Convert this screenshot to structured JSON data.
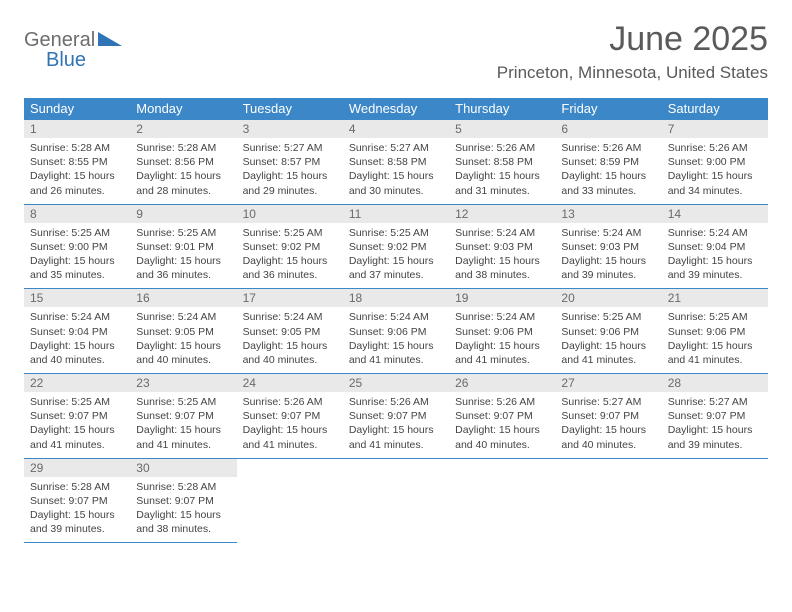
{
  "brand": {
    "word1": "General",
    "word2": "Blue",
    "word1_color": "#6d6d6d",
    "word2_color": "#2f74b5",
    "triangle_color": "#2f74b5"
  },
  "header": {
    "title": "June 2025",
    "location": "Princeton, Minnesota, United States"
  },
  "theme": {
    "header_bg": "#3c87c7",
    "header_fg": "#ffffff",
    "daynum_bg": "#e9e9e9",
    "daynum_fg": "#6a6a6a",
    "rule_color": "#3c87c7",
    "text_color": "#444444"
  },
  "daysOfWeek": [
    "Sunday",
    "Monday",
    "Tuesday",
    "Wednesday",
    "Thursday",
    "Friday",
    "Saturday"
  ],
  "weeks": [
    [
      {
        "n": "1",
        "sunrise": "5:28 AM",
        "sunset": "8:55 PM",
        "dl": "15 hours and 26 minutes."
      },
      {
        "n": "2",
        "sunrise": "5:28 AM",
        "sunset": "8:56 PM",
        "dl": "15 hours and 28 minutes."
      },
      {
        "n": "3",
        "sunrise": "5:27 AM",
        "sunset": "8:57 PM",
        "dl": "15 hours and 29 minutes."
      },
      {
        "n": "4",
        "sunrise": "5:27 AM",
        "sunset": "8:58 PM",
        "dl": "15 hours and 30 minutes."
      },
      {
        "n": "5",
        "sunrise": "5:26 AM",
        "sunset": "8:58 PM",
        "dl": "15 hours and 31 minutes."
      },
      {
        "n": "6",
        "sunrise": "5:26 AM",
        "sunset": "8:59 PM",
        "dl": "15 hours and 33 minutes."
      },
      {
        "n": "7",
        "sunrise": "5:26 AM",
        "sunset": "9:00 PM",
        "dl": "15 hours and 34 minutes."
      }
    ],
    [
      {
        "n": "8",
        "sunrise": "5:25 AM",
        "sunset": "9:00 PM",
        "dl": "15 hours and 35 minutes."
      },
      {
        "n": "9",
        "sunrise": "5:25 AM",
        "sunset": "9:01 PM",
        "dl": "15 hours and 36 minutes."
      },
      {
        "n": "10",
        "sunrise": "5:25 AM",
        "sunset": "9:02 PM",
        "dl": "15 hours and 36 minutes."
      },
      {
        "n": "11",
        "sunrise": "5:25 AM",
        "sunset": "9:02 PM",
        "dl": "15 hours and 37 minutes."
      },
      {
        "n": "12",
        "sunrise": "5:24 AM",
        "sunset": "9:03 PM",
        "dl": "15 hours and 38 minutes."
      },
      {
        "n": "13",
        "sunrise": "5:24 AM",
        "sunset": "9:03 PM",
        "dl": "15 hours and 39 minutes."
      },
      {
        "n": "14",
        "sunrise": "5:24 AM",
        "sunset": "9:04 PM",
        "dl": "15 hours and 39 minutes."
      }
    ],
    [
      {
        "n": "15",
        "sunrise": "5:24 AM",
        "sunset": "9:04 PM",
        "dl": "15 hours and 40 minutes."
      },
      {
        "n": "16",
        "sunrise": "5:24 AM",
        "sunset": "9:05 PM",
        "dl": "15 hours and 40 minutes."
      },
      {
        "n": "17",
        "sunrise": "5:24 AM",
        "sunset": "9:05 PM",
        "dl": "15 hours and 40 minutes."
      },
      {
        "n": "18",
        "sunrise": "5:24 AM",
        "sunset": "9:06 PM",
        "dl": "15 hours and 41 minutes."
      },
      {
        "n": "19",
        "sunrise": "5:24 AM",
        "sunset": "9:06 PM",
        "dl": "15 hours and 41 minutes."
      },
      {
        "n": "20",
        "sunrise": "5:25 AM",
        "sunset": "9:06 PM",
        "dl": "15 hours and 41 minutes."
      },
      {
        "n": "21",
        "sunrise": "5:25 AM",
        "sunset": "9:06 PM",
        "dl": "15 hours and 41 minutes."
      }
    ],
    [
      {
        "n": "22",
        "sunrise": "5:25 AM",
        "sunset": "9:07 PM",
        "dl": "15 hours and 41 minutes."
      },
      {
        "n": "23",
        "sunrise": "5:25 AM",
        "sunset": "9:07 PM",
        "dl": "15 hours and 41 minutes."
      },
      {
        "n": "24",
        "sunrise": "5:26 AM",
        "sunset": "9:07 PM",
        "dl": "15 hours and 41 minutes."
      },
      {
        "n": "25",
        "sunrise": "5:26 AM",
        "sunset": "9:07 PM",
        "dl": "15 hours and 41 minutes."
      },
      {
        "n": "26",
        "sunrise": "5:26 AM",
        "sunset": "9:07 PM",
        "dl": "15 hours and 40 minutes."
      },
      {
        "n": "27",
        "sunrise": "5:27 AM",
        "sunset": "9:07 PM",
        "dl": "15 hours and 40 minutes."
      },
      {
        "n": "28",
        "sunrise": "5:27 AM",
        "sunset": "9:07 PM",
        "dl": "15 hours and 39 minutes."
      }
    ],
    [
      {
        "n": "29",
        "sunrise": "5:28 AM",
        "sunset": "9:07 PM",
        "dl": "15 hours and 39 minutes."
      },
      {
        "n": "30",
        "sunrise": "5:28 AM",
        "sunset": "9:07 PM",
        "dl": "15 hours and 38 minutes."
      },
      null,
      null,
      null,
      null,
      null
    ]
  ],
  "labels": {
    "sunrise": "Sunrise:",
    "sunset": "Sunset:",
    "daylight": "Daylight:"
  }
}
